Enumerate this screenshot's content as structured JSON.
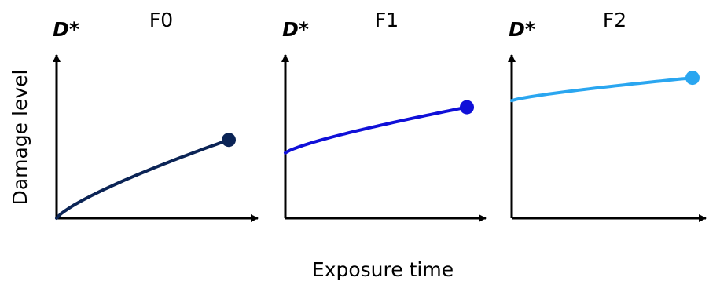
{
  "figure": {
    "ylabel": "Damage level",
    "xlabel": "Exposure time"
  },
  "panels": [
    {
      "title": "F0",
      "y_symbol": "D*",
      "color": "#0b2456",
      "start_level": 0.0,
      "end_level": 0.48
    },
    {
      "title": "F1",
      "y_symbol": "D*",
      "color": "#1010d8",
      "start_level": 0.4,
      "end_level": 0.68
    },
    {
      "title": "F2",
      "y_symbol": "D*",
      "color": "#2aa6f0",
      "start_level": 0.72,
      "end_level": 0.86
    }
  ]
}
